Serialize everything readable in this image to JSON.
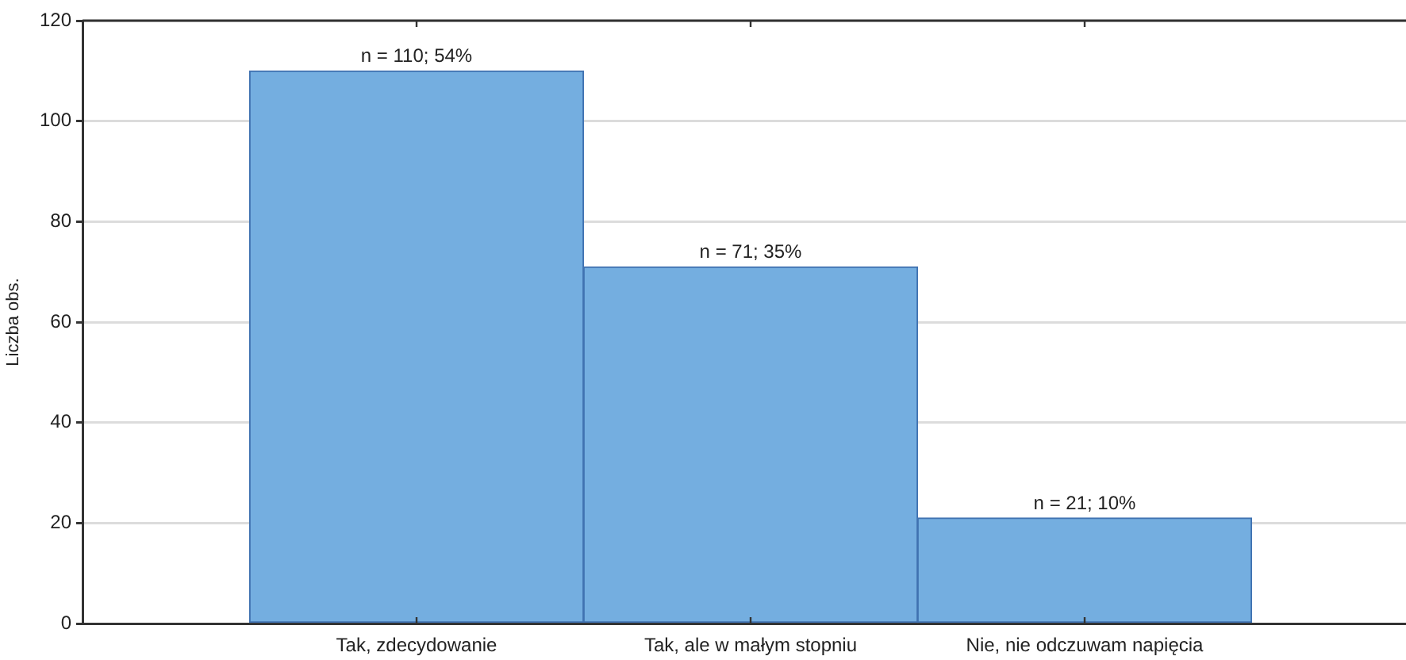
{
  "chart_data": {
    "type": "bar",
    "ylabel": "Liczba obs.",
    "categories": [
      "Tak, zdecydowanie",
      "Tak, ale w małym stopniu",
      "Nie, nie odczuwam napięcia"
    ],
    "values": [
      110,
      71,
      21
    ],
    "value_labels": [
      "n = 110; 54%",
      "n = 71; 35%",
      "n = 21; 10%"
    ],
    "color": "#74aee0",
    "ylim": [
      0,
      120
    ],
    "yticks": [
      0,
      20,
      40,
      60,
      80,
      100,
      120
    ],
    "grid": "y",
    "legend": false
  }
}
